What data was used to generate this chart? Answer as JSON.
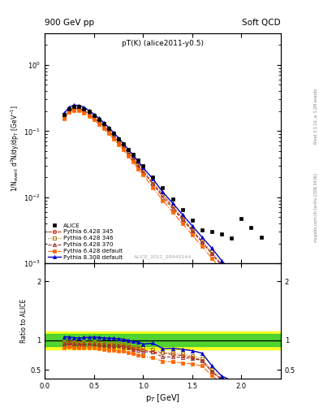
{
  "title_top": "900 GeV pp",
  "title_right": "Soft QCD",
  "subtitle": "pT(K) (alice2011-y0.5)",
  "watermark": "ALICE_2011_S8945144",
  "right_label": "Rivet 3.1.10, ≥ 3.2M events",
  "right_label2": "mcplots.cern.ch [arXiv:1306.3436]",
  "ylabel_main": "1/N$_{\\rm event}$ d$^2$N/dy/dp$_T$ [GeV$^{-1}$]",
  "ylabel_ratio": "Ratio to ALICE",
  "xlabel": "p$_T$ [GeV]",
  "xlim": [
    0.0,
    2.4
  ],
  "ylim_main": [
    0.001,
    3.0
  ],
  "ylim_ratio": [
    0.35,
    2.3
  ],
  "pt": [
    0.2,
    0.25,
    0.3,
    0.35,
    0.4,
    0.45,
    0.5,
    0.55,
    0.6,
    0.65,
    0.7,
    0.75,
    0.8,
    0.85,
    0.9,
    0.95,
    1.0,
    1.1,
    1.2,
    1.3,
    1.4,
    1.5,
    1.6,
    1.7,
    1.8,
    1.9,
    2.0,
    2.1,
    2.2
  ],
  "alice_y": [
    0.178,
    0.218,
    0.236,
    0.236,
    0.218,
    0.196,
    0.171,
    0.15,
    0.129,
    0.11,
    0.092,
    0.077,
    0.064,
    0.053,
    0.044,
    0.036,
    0.03,
    0.02,
    0.014,
    0.0095,
    0.0065,
    0.0045,
    0.0032,
    0.003,
    0.0028,
    0.0024,
    0.0048,
    0.0035,
    0.0025
  ],
  "p345_y": [
    0.167,
    0.208,
    0.222,
    0.22,
    0.204,
    0.183,
    0.16,
    0.139,
    0.119,
    0.101,
    0.084,
    0.07,
    0.058,
    0.047,
    0.038,
    0.031,
    0.025,
    0.016,
    0.011,
    0.0072,
    0.0048,
    0.0032,
    0.0021,
    0.0014,
    0.00095,
    0.00065,
    0.00044,
    0.0003,
    0.00021
  ],
  "p346_y": [
    0.172,
    0.214,
    0.228,
    0.226,
    0.21,
    0.188,
    0.165,
    0.143,
    0.122,
    0.104,
    0.087,
    0.072,
    0.059,
    0.049,
    0.039,
    0.032,
    0.026,
    0.017,
    0.011,
    0.0075,
    0.005,
    0.0033,
    0.0022,
    0.0015,
    0.00099,
    0.00067,
    0.00046,
    0.00031,
    0.00022
  ],
  "p370_y": [
    0.164,
    0.205,
    0.219,
    0.217,
    0.202,
    0.181,
    0.158,
    0.137,
    0.117,
    0.099,
    0.083,
    0.069,
    0.057,
    0.046,
    0.037,
    0.03,
    0.024,
    0.016,
    0.01,
    0.0068,
    0.0046,
    0.0031,
    0.0021,
    0.0014,
    0.00092,
    0.00063,
    0.00043,
    0.00029,
    0.0002
  ],
  "pdef_y": [
    0.155,
    0.194,
    0.207,
    0.205,
    0.19,
    0.17,
    0.148,
    0.128,
    0.109,
    0.092,
    0.077,
    0.063,
    0.052,
    0.042,
    0.034,
    0.027,
    0.022,
    0.014,
    0.009,
    0.006,
    0.004,
    0.0027,
    0.0018,
    0.0012,
    0.00079,
    0.00054,
    0.00036,
    0.00025,
    0.00017
  ],
  "p8def_y": [
    0.188,
    0.23,
    0.246,
    0.244,
    0.228,
    0.205,
    0.18,
    0.157,
    0.134,
    0.114,
    0.095,
    0.079,
    0.065,
    0.053,
    0.043,
    0.035,
    0.028,
    0.019,
    0.012,
    0.0082,
    0.0055,
    0.0037,
    0.0025,
    0.0017,
    0.0011,
    0.00076,
    0.00052,
    0.00035,
    0.00025
  ],
  "color_345": "#cc2200",
  "color_346": "#aa7700",
  "color_370": "#993333",
  "color_pdef": "#ff6600",
  "color_p8def": "#0000cc",
  "band_pt": [
    0.0,
    0.15,
    0.2,
    0.25,
    0.3,
    0.35,
    0.4,
    0.45,
    0.5,
    0.6,
    0.7,
    0.8,
    0.9,
    1.0,
    1.1,
    1.2,
    1.4,
    1.6,
    1.8,
    2.0,
    2.2,
    2.4
  ],
  "band_yellow_lo": [
    0.85,
    0.85,
    0.85,
    0.85,
    0.85,
    0.85,
    0.85,
    0.85,
    0.85,
    0.85,
    0.85,
    0.85,
    0.85,
    0.85,
    0.85,
    0.85,
    0.85,
    0.85,
    0.85,
    0.85,
    0.85,
    0.85
  ],
  "band_yellow_hi": [
    1.15,
    1.15,
    1.15,
    1.15,
    1.15,
    1.15,
    1.15,
    1.15,
    1.15,
    1.15,
    1.15,
    1.15,
    1.15,
    1.15,
    1.15,
    1.15,
    1.15,
    1.15,
    1.15,
    1.15,
    1.15,
    1.15
  ],
  "band_green_lo": [
    0.9,
    0.9,
    0.9,
    0.9,
    0.9,
    0.9,
    0.9,
    0.9,
    0.9,
    0.9,
    0.9,
    0.9,
    0.9,
    0.9,
    0.9,
    0.9,
    0.9,
    0.9,
    0.9,
    0.9,
    0.9,
    0.9
  ],
  "band_green_hi": [
    1.1,
    1.1,
    1.1,
    1.1,
    1.1,
    1.1,
    1.1,
    1.1,
    1.1,
    1.1,
    1.1,
    1.1,
    1.1,
    1.1,
    1.1,
    1.1,
    1.1,
    1.1,
    1.1,
    1.1,
    1.1,
    1.1
  ]
}
